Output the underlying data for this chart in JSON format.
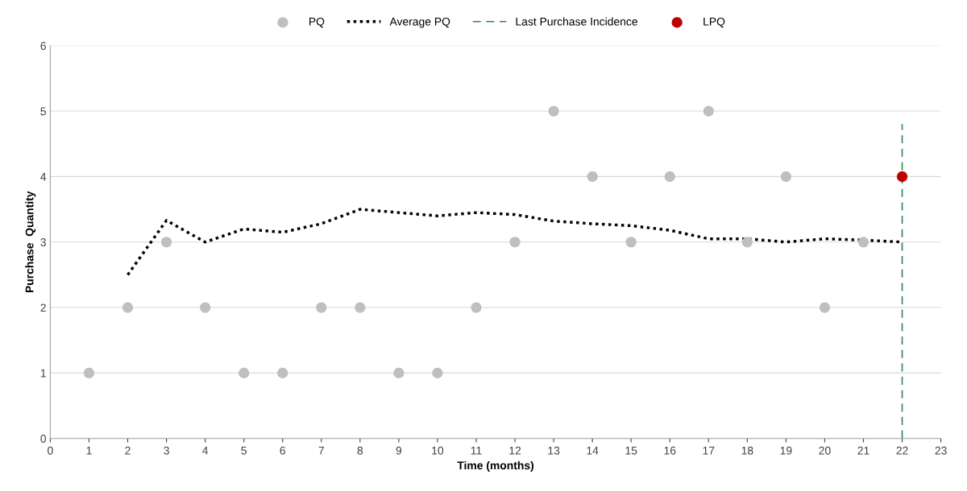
{
  "chart_data": {
    "type": "scatter",
    "xlabel": "Time (months)",
    "ylabel": "Purchase  Quantity",
    "xlim": [
      0,
      23
    ],
    "xticks": [
      0,
      1,
      2,
      3,
      4,
      5,
      6,
      7,
      8,
      9,
      10,
      11,
      12,
      13,
      14,
      15,
      16,
      17,
      18,
      19,
      20,
      21,
      22,
      23
    ],
    "ylim": [
      0,
      6
    ],
    "yticks": [
      0,
      1,
      2,
      3,
      4,
      5,
      6
    ],
    "grid": "y",
    "legend": "top",
    "series": [
      {
        "name": "PQ",
        "marker": "circle",
        "color": "#bfbfbf",
        "x": [
          1,
          2,
          3,
          4,
          5,
          6,
          7,
          8,
          9,
          10,
          11,
          12,
          13,
          14,
          15,
          16,
          17,
          18,
          19,
          20,
          21
        ],
        "values": [
          1,
          2,
          3,
          2,
          1,
          1,
          2,
          2,
          1,
          1,
          2,
          3,
          5,
          4,
          3,
          4,
          5,
          3,
          4,
          2,
          3
        ]
      },
      {
        "name": "Average PQ",
        "type": "line",
        "line_style": "dotted",
        "color": "#000000",
        "x": [
          2,
          3,
          4,
          5,
          6,
          7,
          8,
          9,
          10,
          11,
          12,
          13,
          14,
          15,
          16,
          17,
          18,
          19,
          20,
          21,
          22
        ],
        "values": [
          2.5,
          3.33,
          3.0,
          3.2,
          3.15,
          3.28,
          3.5,
          3.45,
          3.4,
          3.45,
          3.42,
          3.32,
          3.28,
          3.25,
          3.18,
          3.05,
          3.05,
          3.0,
          3.05,
          3.03,
          3.0
        ]
      },
      {
        "name": "Last Purchase Incidence",
        "type": "line",
        "line_style": "dashed",
        "color": "#2e8b57",
        "x": [
          22,
          22
        ],
        "values": [
          0,
          4.8
        ]
      },
      {
        "name": "LPQ",
        "marker": "circle",
        "color": "#c00000",
        "x": [
          22
        ],
        "values": [
          4
        ]
      }
    ]
  }
}
